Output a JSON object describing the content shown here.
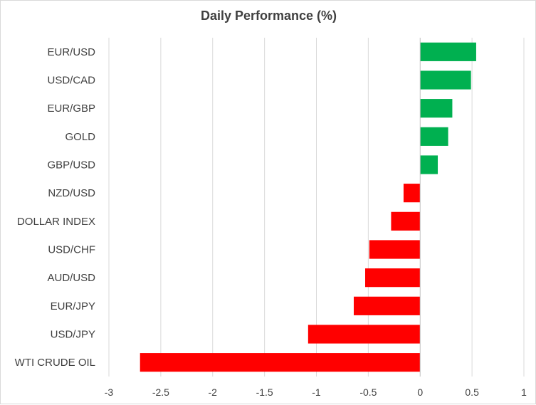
{
  "chart_data": {
    "type": "bar",
    "orientation": "horizontal",
    "title": "Daily Performance (%)",
    "xlabel": "",
    "ylabel": "",
    "xlim": [
      -3,
      1
    ],
    "x_ticks": [
      -3,
      -2.5,
      -2,
      -1.5,
      -1,
      -0.5,
      0,
      0.5,
      1
    ],
    "x_tick_labels": [
      "-3",
      "-2.5",
      "-2",
      "-1.5",
      "-1",
      "-0.5",
      "0",
      "0.5",
      "1"
    ],
    "grid": "vertical",
    "legend": "none",
    "categories": [
      "EUR/USD",
      "USD/CAD",
      "EUR/GBP",
      "GOLD",
      "GBP/USD",
      "NZD/USD",
      "DOLLAR INDEX",
      "USD/CHF",
      "AUD/USD",
      "EUR/JPY",
      "USD/JPY",
      "WTI CRUDE OIL"
    ],
    "values": [
      0.54,
      0.49,
      0.31,
      0.27,
      0.17,
      -0.16,
      -0.28,
      -0.49,
      -0.53,
      -0.64,
      -1.08,
      -2.7
    ],
    "colors": {
      "positive": "#00b050",
      "negative": "#ff0000",
      "grid": "#d9d9d9",
      "axis": "#bfbfbf",
      "text": "#404040"
    }
  }
}
